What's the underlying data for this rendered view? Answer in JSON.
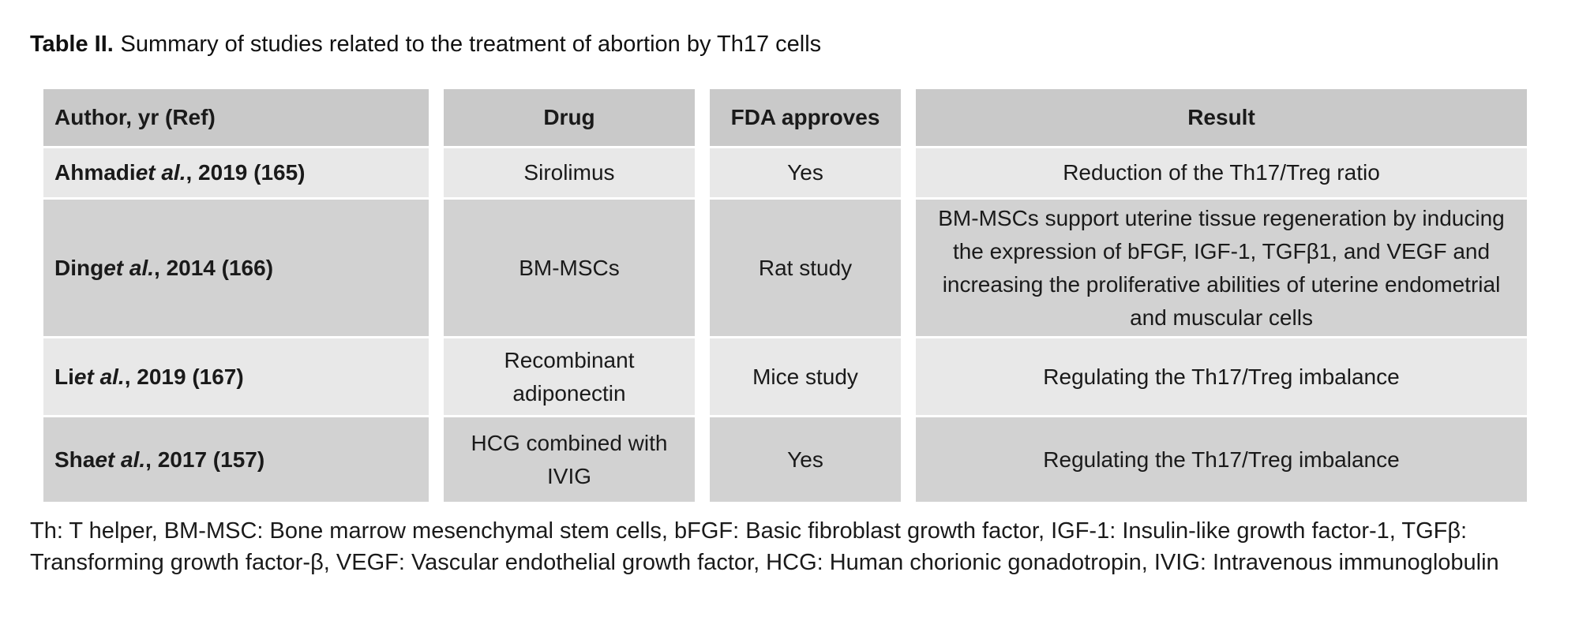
{
  "title": {
    "label": "Table II.",
    "text": "Summary of studies related to the treatment of abortion by Th17 cells"
  },
  "table": {
    "headers": [
      "Author, yr (Ref)",
      "Drug",
      "FDA approves",
      "Result"
    ],
    "rows": [
      {
        "author_name": "Ahmadi",
        "author_etal": " et al.",
        "author_rest": ", 2019 (165)",
        "drug": "Sirolimus",
        "fda_approves": "Yes",
        "result": "Reduction of the Th17/Treg ratio"
      },
      {
        "author_name": "Ding",
        "author_etal": " et al.",
        "author_rest": ", 2014 (166)",
        "drug": "BM-MSCs",
        "fda_approves": "Rat study",
        "result": "BM-MSCs support uterine tissue regeneration by inducing the expression of bFGF, IGF-1, TGFβ1, and VEGF and increasing the proliferative abilities of uterine endometrial and muscular cells"
      },
      {
        "author_name": "Li",
        "author_etal": " et al.",
        "author_rest": ", 2019 (167)",
        "drug": "Recombinant adiponectin",
        "fda_approves": "Mice study",
        "result": "Regulating the Th17/Treg imbalance"
      },
      {
        "author_name": "Sha",
        "author_etal": " et al.",
        "author_rest": ", 2017 (157)",
        "drug": "HCG combined with IVIG",
        "fda_approves": "Yes",
        "result": "Regulating the Th17/Treg imbalance"
      }
    ]
  },
  "footnote": "Th: T helper, BM-MSC: Bone marrow mesenchymal stem cells, bFGF: Basic fibroblast growth factor, IGF-1: Insulin-like growth factor-1, TGFβ: Transforming growth factor-β, VEGF: Vascular endothelial growth factor, HCG: Human chorionic gonadotropin, IVIG: Intravenous immunoglobulin",
  "colors": {
    "header_bg": "#c9c9c9",
    "row_light_bg": "#e8e8e8",
    "row_dark_bg": "#d2d2d2",
    "text": "#1a1a1a"
  }
}
